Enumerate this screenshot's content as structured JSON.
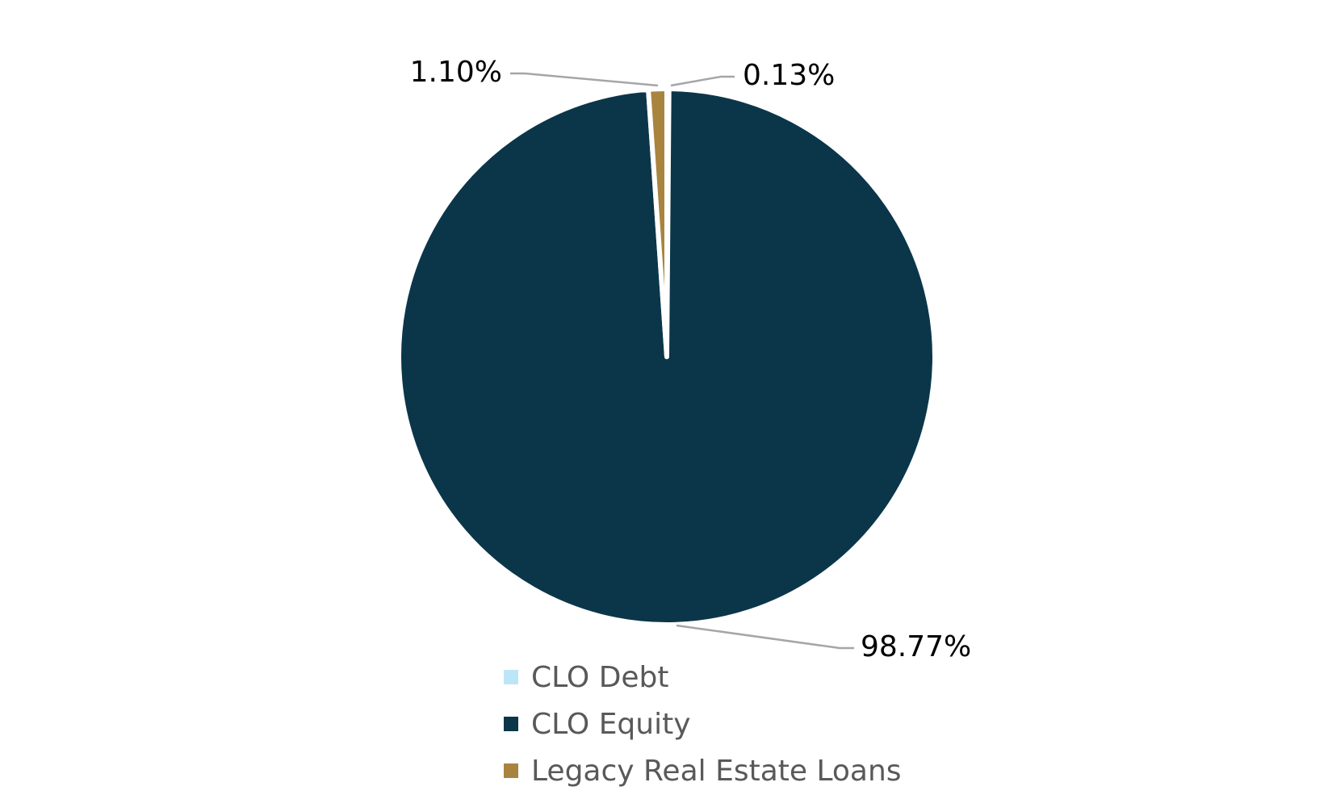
{
  "chart_data": {
    "type": "pie",
    "title": "",
    "slices": [
      {
        "label": "CLO Debt",
        "value": 0.13,
        "data_label": "0.13%",
        "color": "#bde5f8"
      },
      {
        "label": "CLO Equity",
        "value": 98.77,
        "data_label": "98.77%",
        "color": "#0b3649"
      },
      {
        "label": "Legacy Real Estate Loans",
        "value": 1.1,
        "data_label": "1.10%",
        "color": "#a8843f"
      }
    ],
    "legend_position": "bottom",
    "data_labels_position": "outside with leader lines",
    "slice_border_color": "#ffffff"
  }
}
